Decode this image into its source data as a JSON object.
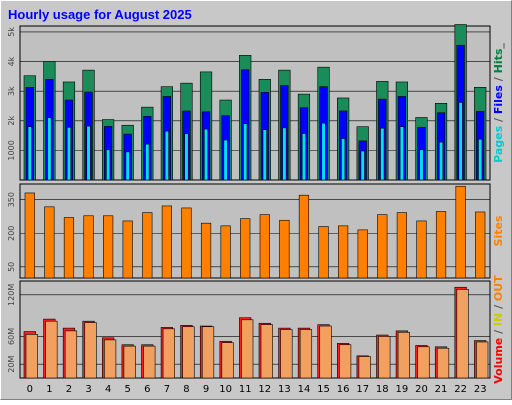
{
  "chart_data": {
    "title": "Hourly usage for August 2025",
    "type": "bar",
    "categories": [
      "0",
      "1",
      "2",
      "3",
      "4",
      "5",
      "6",
      "7",
      "8",
      "9",
      "10",
      "11",
      "12",
      "13",
      "14",
      "15",
      "16",
      "17",
      "18",
      "19",
      "20",
      "21",
      "22",
      "23"
    ],
    "panels": [
      {
        "id": "hits",
        "ylim": [
          0,
          5200
        ],
        "ticks": [
          {
            "value": 1000,
            "label": "1000"
          },
          {
            "value": 2000,
            "label": "2k"
          },
          {
            "value": 3000,
            "label": "3k"
          },
          {
            "value": 4000,
            "label": "4k"
          },
          {
            "value": 5000,
            "label": "5k"
          }
        ],
        "axis_label": [
          {
            "text": "Pages",
            "color": "#00cccc"
          },
          {
            "text": " / ",
            "color": "#555555"
          },
          {
            "text": "Files",
            "color": "#0000ff"
          },
          {
            "text": " / ",
            "color": "#555555"
          },
          {
            "text": "Hits",
            "color": "#008040"
          },
          {
            "text": "_",
            "color": "#555555"
          }
        ],
        "series": [
          {
            "name": "Hits",
            "color": "#1a8c5a",
            "values": [
              3520,
              4000,
              3310,
              3710,
              2040,
              1850,
              2460,
              3150,
              3270,
              3650,
              2700,
              4210,
              3400,
              3710,
              2900,
              3810,
              2770,
              1800,
              3330,
              3310,
              2110,
              2590,
              5250,
              3130
            ]
          },
          {
            "name": "Files",
            "color": "#0000ff",
            "values": [
              3130,
              3400,
              2700,
              2970,
              1810,
              1550,
              2150,
              2820,
              2330,
              2300,
              2170,
              3720,
              2960,
              3190,
              2440,
              3150,
              2330,
              1320,
              2730,
              2820,
              1780,
              2270,
              4550,
              2320
            ]
          },
          {
            "name": "Pages",
            "color": "#00e0f0",
            "values": [
              1800,
              2100,
              1780,
              1820,
              1020,
              950,
              1210,
              1650,
              1560,
              1720,
              1350,
              1900,
              1700,
              1760,
              1570,
              1920,
              1400,
              980,
              1750,
              1800,
              1020,
              1280,
              2620,
              1380
            ]
          }
        ]
      },
      {
        "id": "sites",
        "ylim": [
          0,
          420
        ],
        "ticks": [
          {
            "value": 50,
            "label": "50"
          },
          {
            "value": 200,
            "label": "200"
          },
          {
            "value": 350,
            "label": "350"
          }
        ],
        "axis_label": [
          {
            "text": "Sites",
            "color": "#ff8000"
          }
        ],
        "series": [
          {
            "name": "Sites",
            "color": "#ff8000",
            "values": [
              380,
              318,
              270,
              278,
              278,
              255,
              292,
              322,
              313,
              245,
              233,
              265,
              283,
              258,
              370,
              230,
              233,
              215,
              283,
              292,
              255,
              297,
              410,
              295
            ]
          }
        ]
      },
      {
        "id": "volume",
        "ylim": [
          0,
          140
        ],
        "ticks": [
          {
            "value": 20,
            "label": "20M"
          },
          {
            "value": 60,
            "label": "60M"
          },
          {
            "value": 120,
            "label": "120M"
          }
        ],
        "axis_label": [
          {
            "text": "Volume",
            "color": "#ff0000"
          },
          {
            "text": " / ",
            "color": "#555555"
          },
          {
            "text": "IN",
            "color": "#cccc00"
          },
          {
            "text": " / ",
            "color": "#555555"
          },
          {
            "text": "OUT",
            "color": "#ff8000"
          }
        ],
        "series": [
          {
            "name": "Volume",
            "color": "#ff2020",
            "values": [
              67,
              85,
              72,
              82,
              58,
              48,
              48,
              73,
              76,
              75,
              53,
              87,
              79,
              72,
              72,
              77,
              50,
              32,
              62,
              68,
              47,
              45,
              131,
              54
            ]
          },
          {
            "name": "Out",
            "color": "#f2a060",
            "values": [
              63,
              82,
              68,
              80,
              55,
              46,
              46,
              71,
              74,
              74,
              51,
              84,
              77,
              70,
              70,
              75,
              48,
              31,
              60,
              66,
              45,
              43,
              128,
              52
            ]
          }
        ]
      }
    ]
  }
}
